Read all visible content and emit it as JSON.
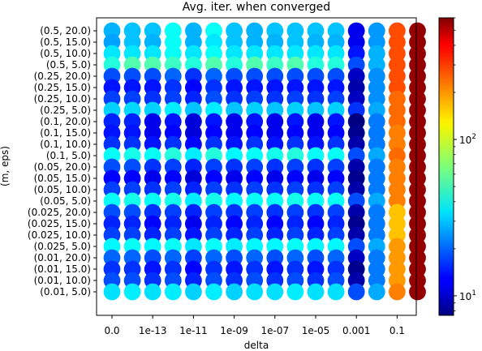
{
  "chart_data": {
    "type": "scatter",
    "title": "Avg. iter. when converged",
    "xlabel": "delta",
    "ylabel": "(m, eps)",
    "x_categories": [
      "0.0",
      "1e-13",
      "1e-11",
      "1e-09",
      "1e-07",
      "1e-05",
      "0.001",
      "0.1"
    ],
    "x_positions": [
      0,
      2,
      4,
      6,
      8,
      10,
      12,
      14
    ],
    "y_categories": [
      "(0.5, 20.0)",
      "(0.5, 15.0)",
      "(0.5, 10.0)",
      "(0.5, 5.0)",
      "(0.25, 20.0)",
      "(0.25, 15.0)",
      "(0.25, 10.0)",
      "(0.25, 5.0)",
      "(0.1, 20.0)",
      "(0.1, 15.0)",
      "(0.1, 10.0)",
      "(0.1, 5.0)",
      "(0.05, 20.0)",
      "(0.05, 15.0)",
      "(0.05, 10.0)",
      "(0.05, 5.0)",
      "(0.025, 20.0)",
      "(0.025, 15.0)",
      "(0.025, 10.0)",
      "(0.025, 5.0)",
      "(0.01, 20.0)",
      "(0.01, 15.0)",
      "(0.01, 10.0)",
      "(0.01, 5.0)"
    ],
    "x_grid_columns": 16,
    "colorbar": {
      "scale": "log",
      "colormap": "jet",
      "vmin": 7.5,
      "vmax": 600,
      "tick_labels": [
        "10^1",
        "10^2"
      ],
      "tick_values": [
        10,
        100
      ]
    },
    "values": [
      [
        28,
        30,
        30,
        40,
        28,
        40,
        30,
        28,
        30,
        30,
        30,
        30,
        12,
        25,
        250,
        550
      ],
      [
        26,
        30,
        28,
        40,
        28,
        35,
        30,
        28,
        28,
        30,
        28,
        28,
        12,
        25,
        250,
        550
      ],
      [
        35,
        35,
        35,
        40,
        35,
        40,
        35,
        35,
        35,
        35,
        35,
        35,
        14,
        28,
        250,
        550
      ],
      [
        45,
        55,
        55,
        50,
        45,
        55,
        45,
        55,
        50,
        55,
        45,
        45,
        18,
        28,
        250,
        550
      ],
      [
        18,
        18,
        18,
        20,
        16,
        20,
        18,
        18,
        18,
        18,
        18,
        18,
        10,
        24,
        250,
        550
      ],
      [
        14,
        14,
        14,
        16,
        13,
        16,
        14,
        14,
        14,
        14,
        14,
        14,
        9,
        24,
        250,
        550
      ],
      [
        17,
        17,
        16,
        17,
        15,
        18,
        16,
        17,
        16,
        17,
        16,
        17,
        10,
        24,
        220,
        550
      ],
      [
        32,
        33,
        32,
        36,
        30,
        36,
        30,
        32,
        30,
        32,
        30,
        32,
        16,
        27,
        220,
        550
      ],
      [
        15,
        15,
        12,
        14,
        11,
        14,
        12,
        14,
        12,
        14,
        12,
        14,
        7.5,
        22,
        220,
        550
      ],
      [
        14,
        14,
        12,
        13,
        11,
        13,
        12,
        13,
        12,
        13,
        12,
        13,
        8,
        22,
        200,
        550
      ],
      [
        16,
        16,
        14,
        16,
        13,
        16,
        14,
        16,
        14,
        16,
        14,
        16,
        9,
        22,
        200,
        550
      ],
      [
        40,
        42,
        40,
        45,
        36,
        45,
        38,
        40,
        42,
        45,
        40,
        40,
        18,
        27,
        220,
        550
      ],
      [
        18,
        18,
        16,
        17,
        15,
        17,
        16,
        17,
        16,
        17,
        16,
        17,
        9,
        22,
        200,
        550
      ],
      [
        13,
        13,
        12,
        13,
        11,
        13,
        12,
        13,
        12,
        13,
        12,
        13,
        8,
        22,
        200,
        550
      ],
      [
        17,
        17,
        16,
        17,
        15,
        17,
        16,
        17,
        16,
        17,
        16,
        17,
        9,
        22,
        200,
        550
      ],
      [
        40,
        42,
        40,
        42,
        36,
        42,
        38,
        40,
        40,
        42,
        40,
        40,
        18,
        27,
        200,
        550
      ],
      [
        18,
        18,
        16,
        17,
        15,
        17,
        16,
        17,
        16,
        17,
        16,
        17,
        9,
        22,
        150,
        550
      ],
      [
        15,
        15,
        13,
        15,
        12,
        15,
        13,
        15,
        13,
        15,
        13,
        15,
        8,
        22,
        150,
        550
      ],
      [
        17,
        17,
        15,
        17,
        14,
        17,
        15,
        17,
        15,
        17,
        15,
        17,
        9,
        22,
        150,
        550
      ],
      [
        38,
        40,
        38,
        40,
        35,
        40,
        36,
        38,
        38,
        40,
        38,
        38,
        18,
        27,
        180,
        550
      ],
      [
        20,
        20,
        18,
        20,
        17,
        20,
        18,
        20,
        18,
        20,
        18,
        20,
        10,
        22,
        180,
        550
      ],
      [
        16,
        16,
        14,
        16,
        13,
        16,
        14,
        16,
        14,
        16,
        14,
        16,
        8,
        22,
        180,
        550
      ],
      [
        18,
        18,
        16,
        18,
        15,
        18,
        16,
        18,
        16,
        18,
        16,
        18,
        9,
        22,
        180,
        550
      ],
      [
        34,
        36,
        34,
        36,
        32,
        36,
        32,
        34,
        34,
        36,
        34,
        34,
        18,
        27,
        200,
        550
      ]
    ]
  }
}
